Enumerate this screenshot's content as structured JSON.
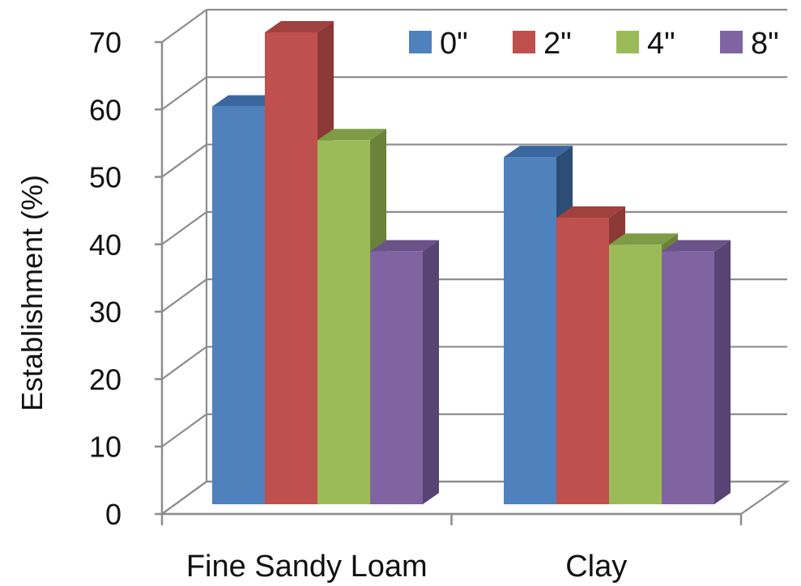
{
  "chart_data": {
    "type": "bar",
    "title": "",
    "xlabel": "",
    "ylabel": "Establishment (%)",
    "ylim": [
      0,
      70
    ],
    "yticks": [
      0,
      10,
      20,
      30,
      40,
      50,
      60,
      70
    ],
    "categories": [
      "Fine Sandy Loam",
      "Clay"
    ],
    "series": [
      {
        "name": "0\"",
        "values": [
          59,
          51.5
        ],
        "color": "#4F81BD",
        "side": "#2C4D75",
        "top": "#3A67A0"
      },
      {
        "name": "2\"",
        "values": [
          70,
          42.5
        ],
        "color": "#C0504D",
        "side": "#8C3836",
        "top": "#A0413F"
      },
      {
        "name": "4\"",
        "values": [
          54,
          38.5
        ],
        "color": "#9BBB59",
        "side": "#6B8338",
        "top": "#7E9C46"
      },
      {
        "name": "8\"",
        "values": [
          37.5,
          37.5
        ],
        "color": "#8064A2",
        "side": "#574374",
        "top": "#6B5389"
      }
    ],
    "grid": true,
    "legend_position": "top-right",
    "style": "3d-clustered-column"
  }
}
